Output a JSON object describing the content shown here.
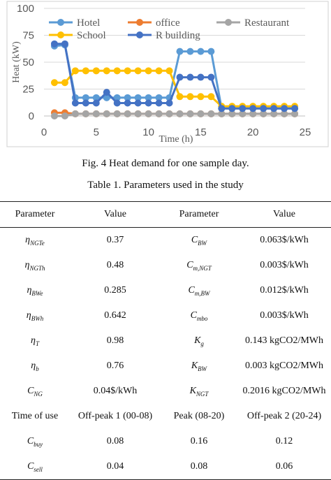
{
  "chart_data": {
    "type": "line",
    "title": "",
    "xlabel": "Time (h)",
    "ylabel": "Heat (kW)",
    "xlim": [
      0,
      25
    ],
    "ylim": [
      0,
      100
    ],
    "xticks": [
      "0",
      "5",
      "10",
      "15",
      "20",
      "25"
    ],
    "yticks": [
      "0",
      "25",
      "50",
      "75",
      "100"
    ],
    "legend_position": "top",
    "grid": true,
    "x": [
      1,
      2,
      3,
      4,
      5,
      6,
      7,
      8,
      9,
      10,
      11,
      12,
      13,
      14,
      15,
      16,
      17,
      18,
      19,
      20,
      21,
      22,
      23,
      24
    ],
    "series": [
      {
        "name": "Hotel",
        "color": "#5b9bd5",
        "values": [
          65,
          66,
          17,
          17,
          17,
          17,
          17,
          17,
          17,
          17,
          17,
          17,
          60,
          60,
          60,
          60,
          7,
          7,
          7,
          7,
          7,
          7,
          7,
          7
        ]
      },
      {
        "name": "office",
        "color": "#ed7d31",
        "values": [
          3,
          3,
          2,
          2,
          2,
          2,
          2,
          2,
          2,
          2,
          2,
          2,
          2,
          2,
          2,
          2,
          2,
          2,
          2,
          2,
          2,
          2,
          2,
          2
        ]
      },
      {
        "name": "Restaurant",
        "color": "#a5a5a5",
        "values": [
          0,
          0,
          2,
          2,
          2,
          2,
          2,
          2,
          2,
          2,
          2,
          2,
          2,
          2,
          2,
          2,
          2,
          2,
          2,
          2,
          2,
          2,
          2,
          2
        ]
      },
      {
        "name": "School",
        "color": "#ffc000",
        "values": [
          31,
          31,
          42,
          42,
          42,
          42,
          42,
          42,
          42,
          42,
          42,
          42,
          18,
          18,
          18,
          18,
          9,
          9,
          9,
          9,
          9,
          9,
          9,
          9
        ]
      },
      {
        "name": "R building",
        "color": "#4472c4",
        "values": [
          67,
          67,
          12,
          12,
          12,
          22,
          12,
          12,
          12,
          12,
          12,
          12,
          36,
          36,
          36,
          36,
          7,
          7,
          7,
          7,
          7,
          7,
          7,
          7
        ]
      }
    ]
  },
  "captions": {
    "figure": "Fig. 4 Heat demand for one sample day.",
    "table": "Table 1. Parameters used in the study"
  },
  "table": {
    "headers": [
      "Parameter",
      "Value",
      "Parameter",
      "Value"
    ],
    "rows": [
      [
        {
          "s": "η",
          "b": "NGTe"
        },
        "0.37",
        {
          "s": "C",
          "b": "BW"
        },
        "0.063$/kWh"
      ],
      [
        {
          "s": "η",
          "b": "NGTh"
        },
        "0.48",
        {
          "s": "C",
          "b": "m,NGT"
        },
        "0.003$/kWh"
      ],
      [
        {
          "s": "η",
          "b": "BWe"
        },
        "0.285",
        {
          "s": "C",
          "b": "m,BW"
        },
        "0.012$/kWh"
      ],
      [
        {
          "s": "η",
          "b": "BWh"
        },
        "0.642",
        {
          "s": "C",
          "b": "mbo"
        },
        "0.003$/kWh"
      ],
      [
        {
          "s": "η",
          "b": "T"
        },
        "0.98",
        {
          "s": "K",
          "b": "g"
        },
        "0.143 kgCO2/MWh"
      ],
      [
        {
          "s": "η",
          "b": "b"
        },
        "0.76",
        {
          "s": "K",
          "b": "BW"
        },
        "0.003 kgCO2/MWh"
      ],
      [
        {
          "s": "C",
          "b": "NG"
        },
        "0.04$/kWh",
        {
          "s": "K",
          "b": "NGT"
        },
        "0.2016 kgCO2/MWh"
      ],
      [
        "Time of use",
        "Off-peak 1 (00-08)",
        "Peak (08-20)",
        "Off-peak 2 (20-24)"
      ],
      [
        {
          "s": "C",
          "b": "buy"
        },
        "0.08",
        "0.16",
        "0.12"
      ],
      [
        {
          "s": "C",
          "b": "sell"
        },
        "0.04",
        "0.08",
        "0.06"
      ]
    ]
  }
}
